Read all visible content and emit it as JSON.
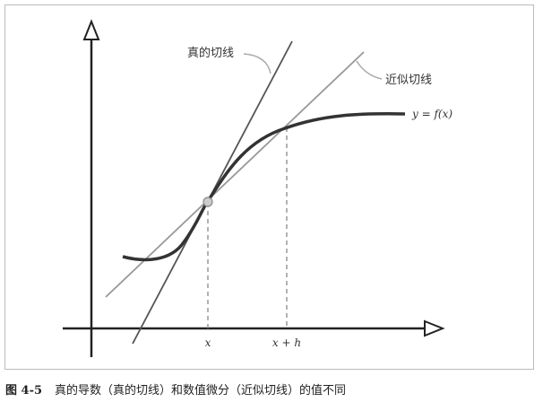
{
  "labels": {
    "true_tangent": "真的切线",
    "approx_tangent": "近似切线",
    "curve": "y = f(x)",
    "x": "x",
    "x_plus_h": "x + h"
  },
  "caption": {
    "number": "图 4-5",
    "text": "真的导数（真的切线）和数值微分（近似切线）的值不同"
  }
}
